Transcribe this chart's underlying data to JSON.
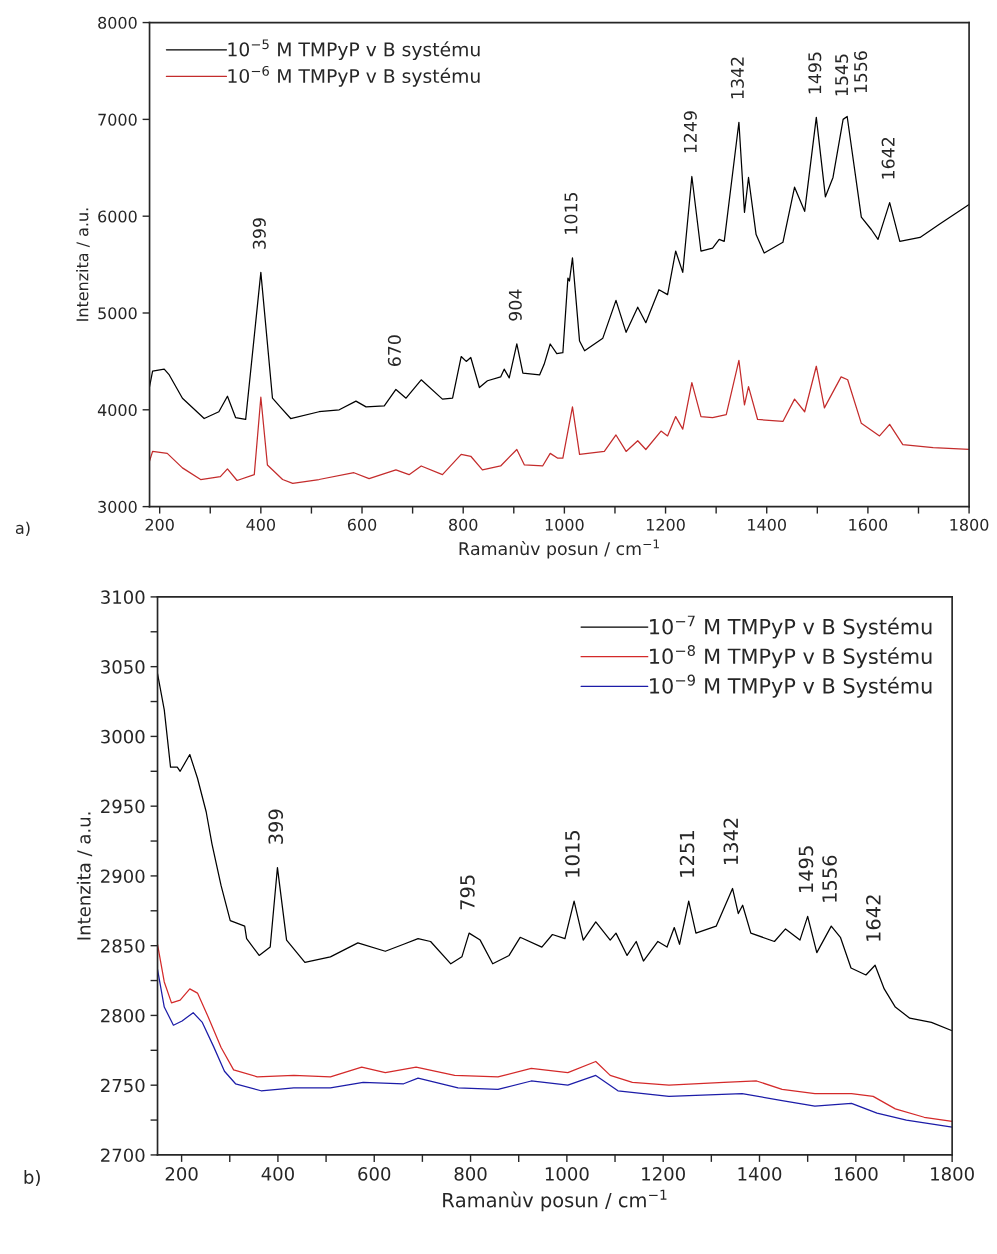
{
  "chart_data": [
    {
      "type": "line",
      "xlabel": "Ramanùv posun / cm$^{−1}$",
      "ylabel": "Intenzita / a.u.",
      "legend": "top left",
      "xlim": [
        180,
        1800
      ],
      "ylim": [
        3000,
        8000
      ],
      "xticks": [
        {
          "value": 200,
          "label": "200"
        },
        {
          "value": 300,
          "label": null
        },
        {
          "value": 400,
          "label": "400"
        },
        {
          "value": 500,
          "label": null
        },
        {
          "value": 600,
          "label": "600"
        },
        {
          "value": 700,
          "label": null
        },
        {
          "value": 800,
          "label": "800"
        },
        {
          "value": 900,
          "label": null
        },
        {
          "value": 1000,
          "label": "1000"
        },
        {
          "value": 1100,
          "label": null
        },
        {
          "value": 1200,
          "label": "1200"
        },
        {
          "value": 1300,
          "label": null
        },
        {
          "value": 1400,
          "label": "1400"
        },
        {
          "value": 1500,
          "label": null
        },
        {
          "value": 1600,
          "label": "1600"
        },
        {
          "value": 1700,
          "label": null
        },
        {
          "value": 1800,
          "label": "1800"
        }
      ],
      "yticks": [
        3000,
        4000,
        5000,
        6000,
        7000,
        8000
      ],
      "series": [
        {
          "name": "10$^{−5}$ M TMPyP v B systému",
          "color": "#000000",
          "x": [
            180,
            186,
            209,
            219,
            245,
            288,
            317,
            334,
            350,
            370,
            400,
            423,
            440,
            459,
            515,
            555,
            588,
            608,
            644,
            667,
            687,
            717,
            759,
            779,
            796,
            806,
            815,
            832,
            848,
            874,
            881,
            891,
            906,
            918,
            951,
            960,
            972,
            985,
            997,
            1007,
            1010,
            1016,
            1030,
            1040,
            1076,
            1102,
            1122,
            1145,
            1161,
            1187,
            1204,
            1220,
            1234,
            1252,
            1270,
            1293,
            1306,
            1316,
            1345,
            1356,
            1364,
            1379,
            1395,
            1432,
            1455,
            1475,
            1498,
            1516,
            1531,
            1551,
            1559,
            1587,
            1607,
            1620,
            1643,
            1663,
            1703,
            1742,
            1800
          ],
          "values": [
            4240,
            4400,
            4420,
            4360,
            4120,
            3910,
            3980,
            4140,
            3920,
            3900,
            5420,
            4120,
            4020,
            3910,
            3980,
            4000,
            4090,
            4030,
            4040,
            4210,
            4120,
            4310,
            4110,
            4120,
            4550,
            4500,
            4540,
            4230,
            4300,
            4340,
            4420,
            4330,
            4680,
            4380,
            4360,
            4470,
            4680,
            4580,
            4590,
            5360,
            5330,
            5570,
            4710,
            4610,
            4740,
            5130,
            4800,
            5060,
            4900,
            5240,
            5190,
            5640,
            5420,
            6410,
            5640,
            5670,
            5760,
            5740,
            6970,
            6040,
            6400,
            5810,
            5620,
            5730,
            6300,
            6050,
            7020,
            6200,
            6400,
            7000,
            7030,
            5990,
            5860,
            5760,
            6140,
            5740,
            5780,
            5920,
            6120
          ]
        },
        {
          "name": "10$^{−6}$ M TMPyP v B systému",
          "color": "#c42c2c",
          "x": [
            180,
            186,
            215,
            245,
            281,
            320,
            334,
            353,
            387,
            400,
            413,
            443,
            463,
            515,
            584,
            614,
            667,
            693,
            717,
            759,
            796,
            815,
            838,
            874,
            906,
            921,
            957,
            972,
            987,
            997,
            1016,
            1030,
            1079,
            1102,
            1122,
            1145,
            1161,
            1191,
            1204,
            1220,
            1234,
            1252,
            1270,
            1293,
            1320,
            1345,
            1356,
            1364,
            1382,
            1432,
            1455,
            1475,
            1498,
            1514,
            1547,
            1560,
            1587,
            1623,
            1643,
            1669,
            1729,
            1800
          ],
          "values": [
            3470,
            3570,
            3550,
            3400,
            3280,
            3310,
            3390,
            3270,
            3330,
            4130,
            3430,
            3280,
            3240,
            3280,
            3350,
            3290,
            3380,
            3330,
            3420,
            3330,
            3540,
            3520,
            3380,
            3420,
            3590,
            3430,
            3420,
            3550,
            3500,
            3500,
            4030,
            3540,
            3570,
            3740,
            3570,
            3680,
            3590,
            3780,
            3730,
            3930,
            3800,
            4280,
            3930,
            3920,
            3950,
            4510,
            4050,
            4240,
            3900,
            3880,
            4110,
            3980,
            4450,
            4020,
            4340,
            4310,
            3860,
            3730,
            3850,
            3640,
            3610,
            3590
          ]
        }
      ],
      "annotations": [
        {
          "text": "399",
          "x": 400,
          "y": 5420
        },
        {
          "text": "670",
          "x": 667,
          "y": 4210
        },
        {
          "text": "904",
          "x": 906,
          "y": 4680
        },
        {
          "text": "1015",
          "x": 1016,
          "y": 5570
        },
        {
          "text": "1249",
          "x": 1252,
          "y": 6410
        },
        {
          "text": "1342",
          "x": 1345,
          "y": 6970
        },
        {
          "text": "1495",
          "x": 1498,
          "y": 7020
        },
        {
          "text": "1545",
          "x": 1551,
          "y": 7000
        },
        {
          "text": "1556",
          "x": 1559,
          "y": 7030
        },
        {
          "text": "1642",
          "x": 1643,
          "y": 6140
        },
        "a)"
      ]
    },
    {
      "type": "line",
      "xlabel": "Ramanùv posun / cm$^{−1}$",
      "ylabel": "Intenzita / a.u.",
      "legend": "top right",
      "xlim": [
        150,
        1800
      ],
      "ylim": [
        2700,
        3100
      ],
      "xticks": [
        {
          "value": 200,
          "label": "200"
        },
        {
          "value": 300,
          "label": null
        },
        {
          "value": 400,
          "label": "400"
        },
        {
          "value": 500,
          "label": null
        },
        {
          "value": 600,
          "label": "600"
        },
        {
          "value": 700,
          "label": null
        },
        {
          "value": 800,
          "label": "800"
        },
        {
          "value": 900,
          "label": null
        },
        {
          "value": 1000,
          "label": "1000"
        },
        {
          "value": 1100,
          "label": null
        },
        {
          "value": 1200,
          "label": "1200"
        },
        {
          "value": 1300,
          "label": null
        },
        {
          "value": 1400,
          "label": "1400"
        },
        {
          "value": 1500,
          "label": null
        },
        {
          "value": 1600,
          "label": "1600"
        },
        {
          "value": 1700,
          "label": null
        },
        {
          "value": 1800,
          "label": "1800"
        }
      ],
      "yticks": [
        2700,
        {
          "value": 2725,
          "label": null
        },
        2750,
        {
          "value": 2775,
          "label": null
        },
        2800,
        {
          "value": 2825,
          "label": null
        },
        2850,
        {
          "value": 2875,
          "label": null
        },
        2900,
        {
          "value": 2925,
          "label": null
        },
        2950,
        {
          "value": 2975,
          "label": null
        },
        3000,
        {
          "value": 3025,
          "label": null
        },
        3050,
        {
          "value": 3075,
          "label": null
        },
        3100
      ],
      "series": [
        {
          "name": "10$^{−7}$ M TMPyP v B Systému",
          "color": "#000000",
          "x": [
            150,
            164,
            177,
            191,
            197,
            217,
            233,
            251,
            263,
            282,
            301,
            331,
            335,
            361,
            384,
            399,
            418,
            456,
            509,
            566,
            623,
            661,
            691,
            717,
            759,
            782,
            797,
            820,
            846,
            880,
            903,
            948,
            970,
            996,
            1015,
            1034,
            1060,
            1090,
            1102,
            1125,
            1144,
            1159,
            1189,
            1208,
            1223,
            1234,
            1253,
            1268,
            1310,
            1344,
            1356,
            1365,
            1382,
            1431,
            1454,
            1484,
            1500,
            1519,
            1549,
            1568,
            1590,
            1621,
            1640,
            1659,
            1682,
            1712,
            1757,
            1800
          ],
          "values": [
            3045,
            3019,
            2978,
            2978,
            2975,
            2987,
            2970,
            2946,
            2923,
            2893,
            2868,
            2864,
            2855,
            2843,
            2849,
            2906,
            2854,
            2838,
            2842,
            2852,
            2846,
            2851,
            2855,
            2853,
            2837,
            2842,
            2859,
            2854,
            2837,
            2843,
            2856,
            2849,
            2858,
            2855,
            2882,
            2854,
            2867,
            2854,
            2859,
            2843,
            2853,
            2839,
            2853,
            2849,
            2863,
            2851,
            2882,
            2859,
            2864,
            2891,
            2873,
            2879,
            2859,
            2853,
            2862,
            2854,
            2871,
            2845,
            2864,
            2856,
            2834,
            2829,
            2836,
            2819,
            2806,
            2798,
            2795,
            2789
          ]
        },
        {
          "name": "10$^{−8}$ M TMPyP v B Systému",
          "color": "#d42a2a",
          "x": [
            150,
            164,
            179,
            197,
            217,
            233,
            255,
            282,
            308,
            357,
            433,
            509,
            574,
            623,
            687,
            767,
            857,
            926,
            1002,
            1060,
            1090,
            1136,
            1212,
            1326,
            1394,
            1447,
            1515,
            1591,
            1636,
            1682,
            1742,
            1800
          ],
          "values": [
            2851,
            2824,
            2809,
            2811,
            2819,
            2816,
            2799,
            2777,
            2761,
            2756,
            2757,
            2756,
            2763,
            2759,
            2763,
            2757,
            2756,
            2762,
            2759,
            2767,
            2757,
            2752,
            2750,
            2752,
            2753,
            2747,
            2744,
            2744,
            2742,
            2733,
            2727,
            2724
          ]
        },
        {
          "name": "10$^{−9}$ M TMPyP v B Systému",
          "color": "#1c1ca8",
          "x": [
            150,
            164,
            183,
            201,
            224,
            243,
            266,
            289,
            312,
            365,
            433,
            509,
            577,
            661,
            691,
            774,
            857,
            926,
            1002,
            1060,
            1106,
            1212,
            1364,
            1447,
            1515,
            1591,
            1644,
            1705,
            1800
          ],
          "values": [
            2833,
            2806,
            2793,
            2796,
            2802,
            2795,
            2778,
            2760,
            2751,
            2746,
            2748,
            2748,
            2752,
            2751,
            2755,
            2748,
            2747,
            2753,
            2750,
            2757,
            2746,
            2742,
            2744,
            2739,
            2735,
            2737,
            2730,
            2725,
            2720
          ]
        }
      ],
      "annotations": [
        {
          "text": "399",
          "x": 399,
          "y": 2906
        },
        {
          "text": "795",
          "x": 797,
          "y": 2859
        },
        {
          "text": "1015",
          "x": 1015,
          "y": 2882
        },
        {
          "text": "1251",
          "x": 1253,
          "y": 2882
        },
        {
          "text": "1342",
          "x": 1344,
          "y": 2891
        },
        {
          "text": "1495",
          "x": 1500,
          "y": 2871
        },
        {
          "text": "1556",
          "x": 1549,
          "y": 2864
        },
        {
          "text": "1642",
          "x": 1640,
          "y": 2836
        },
        "b)"
      ]
    }
  ]
}
